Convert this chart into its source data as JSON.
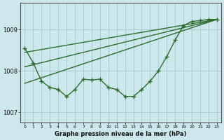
{
  "xlabel": "Graphe pression niveau de la mer (hPa)",
  "background_color": "#cce8ec",
  "grid_color": "#aacccc",
  "line_color": "#2d6b2d",
  "wavy_x": [
    0,
    1,
    2,
    3,
    4,
    5,
    6,
    7,
    8,
    9,
    10,
    11,
    12,
    13,
    14,
    15,
    16,
    17,
    18,
    19,
    20,
    21,
    22,
    23
  ],
  "wavy_y": [
    1008.55,
    1008.2,
    1007.75,
    1007.6,
    1007.55,
    1007.38,
    1007.55,
    1007.8,
    1007.78,
    1007.8,
    1007.6,
    1007.55,
    1007.38,
    1007.38,
    1007.55,
    1007.75,
    1008.0,
    1008.35,
    1008.75,
    1009.1,
    1009.2,
    1009.22,
    1009.25,
    1009.25
  ],
  "line1_x": [
    0,
    23
  ],
  "line1_y": [
    1008.45,
    1009.25
  ],
  "line2_x": [
    0,
    23
  ],
  "line2_y": [
    1008.1,
    1009.25
  ],
  "line3_x": [
    0,
    23
  ],
  "line3_y": [
    1007.7,
    1009.25
  ],
  "ylim": [
    1006.75,
    1009.65
  ],
  "yticks": [
    1007,
    1008,
    1009
  ],
  "xlim": [
    -0.5,
    23.5
  ],
  "xticks": [
    0,
    1,
    2,
    3,
    4,
    5,
    6,
    7,
    8,
    9,
    10,
    11,
    12,
    13,
    14,
    15,
    16,
    17,
    18,
    19,
    20,
    21,
    22,
    23
  ]
}
